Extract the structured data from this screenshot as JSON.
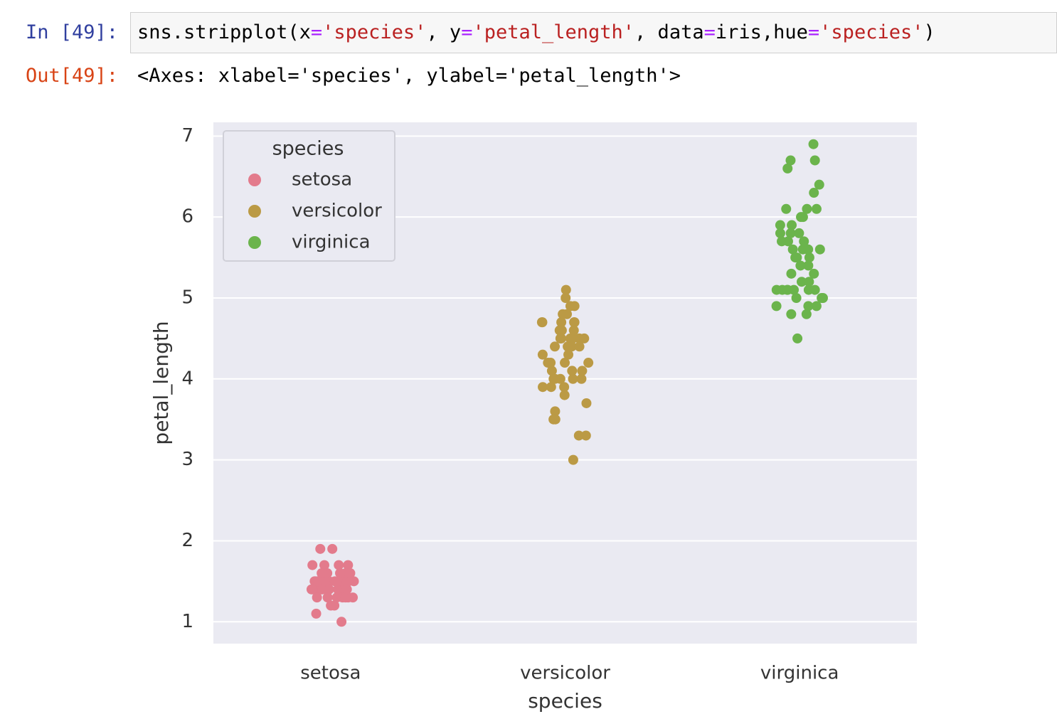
{
  "cell": {
    "prompt_in": "In [49]:",
    "code": "sns.stripplot(x='species', y='petal_length', data=iris,hue='species')",
    "prompt_out": "Out[49]:",
    "output": "<Axes: xlabel='species', ylabel='petal_length'>"
  },
  "chart_data": {
    "type": "strip",
    "xlabel": "species",
    "ylabel": "petal_length",
    "categories": [
      "setosa",
      "versicolor",
      "virginica"
    ],
    "series": [
      {
        "name": "setosa",
        "color": "#e37b8c",
        "values": [
          1.4,
          1.4,
          1.3,
          1.5,
          1.4,
          1.7,
          1.4,
          1.5,
          1.4,
          1.5,
          1.5,
          1.6,
          1.4,
          1.1,
          1.2,
          1.5,
          1.3,
          1.4,
          1.7,
          1.5,
          1.7,
          1.5,
          1.0,
          1.7,
          1.9,
          1.6,
          1.6,
          1.5,
          1.4,
          1.6,
          1.6,
          1.5,
          1.5,
          1.4,
          1.5,
          1.2,
          1.3,
          1.4,
          1.3,
          1.5,
          1.3,
          1.3,
          1.3,
          1.6,
          1.9,
          1.4,
          1.6,
          1.4,
          1.5,
          1.4
        ]
      },
      {
        "name": "versicolor",
        "color": "#bb9a45",
        "values": [
          4.7,
          4.5,
          4.9,
          4.0,
          4.6,
          4.5,
          4.7,
          3.3,
          4.6,
          3.9,
          3.5,
          4.2,
          4.0,
          4.7,
          3.6,
          4.4,
          4.5,
          4.1,
          4.5,
          3.9,
          4.8,
          4.0,
          4.9,
          4.7,
          4.3,
          4.4,
          4.8,
          5.0,
          4.5,
          3.5,
          3.8,
          3.7,
          3.9,
          5.1,
          4.5,
          4.5,
          4.7,
          4.4,
          4.1,
          4.0,
          4.4,
          4.6,
          4.0,
          3.3,
          4.2,
          4.2,
          4.2,
          4.3,
          3.0,
          4.1
        ]
      },
      {
        "name": "virginica",
        "color": "#6bb44c",
        "values": [
          6.0,
          5.1,
          5.9,
          5.6,
          5.8,
          6.6,
          4.5,
          6.3,
          5.8,
          6.1,
          5.1,
          5.3,
          5.5,
          5.0,
          5.1,
          5.3,
          5.5,
          6.7,
          6.9,
          5.0,
          5.7,
          4.9,
          6.7,
          4.9,
          5.7,
          6.0,
          4.8,
          4.9,
          5.6,
          5.8,
          6.1,
          6.4,
          5.6,
          5.1,
          5.6,
          6.1,
          5.6,
          5.5,
          4.8,
          5.4,
          5.6,
          5.1,
          5.1,
          5.9,
          5.7,
          5.2,
          5.0,
          5.2,
          5.4,
          5.1
        ]
      }
    ],
    "ylim": [
      0.73,
      7.17
    ],
    "yticks": [
      1,
      2,
      3,
      4,
      5,
      6,
      7
    ],
    "grid": true,
    "legend": {
      "title": "species",
      "loc": "upper left"
    }
  }
}
